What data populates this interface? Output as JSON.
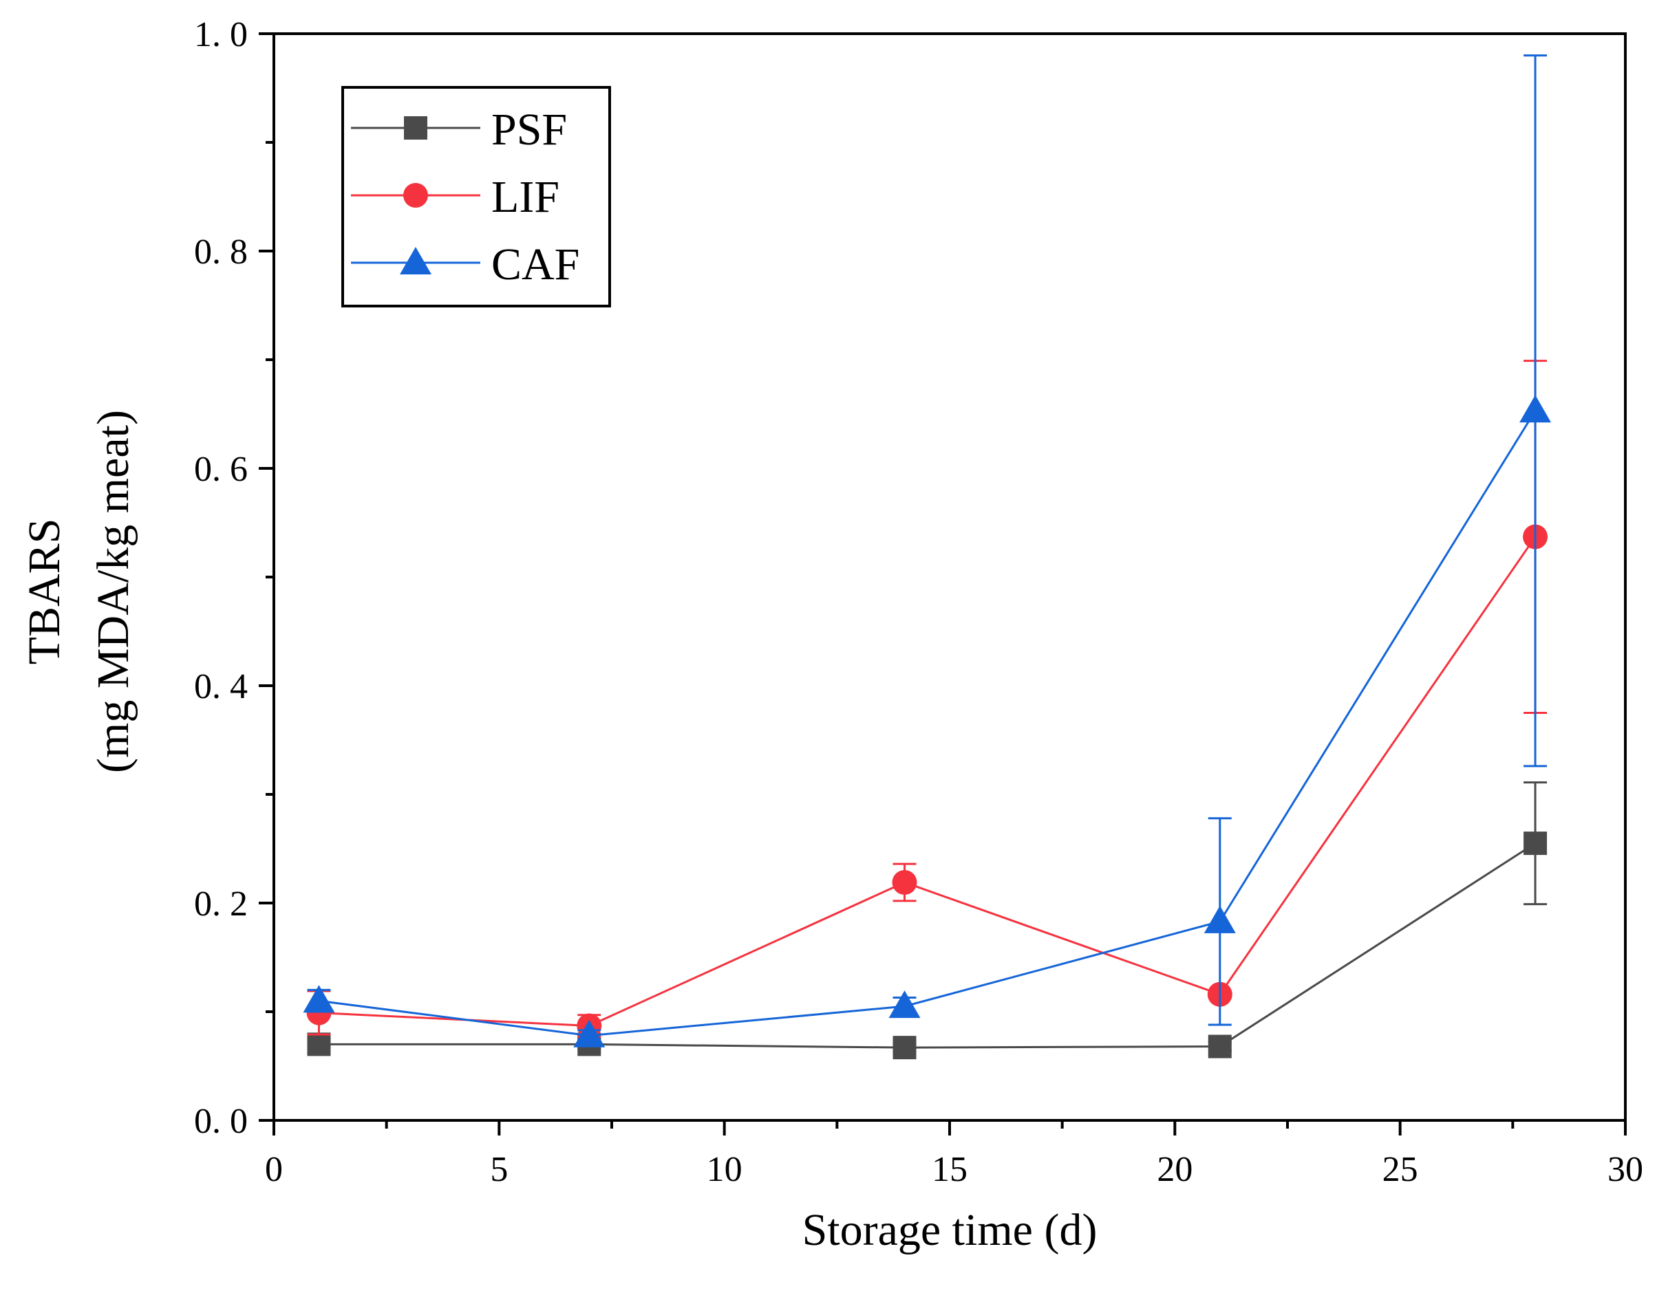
{
  "chart_data": {
    "type": "line",
    "xlabel": "Storage time (d)",
    "ylabel": [
      "TBARS",
      "(mg MDA/kg meat)"
    ],
    "xlim": [
      0,
      30
    ],
    "ylim": [
      0,
      1.0
    ],
    "x_ticks": [
      0,
      5,
      10,
      15,
      20,
      25,
      30
    ],
    "x_tick_labels": [
      "0",
      "5",
      "10",
      "15",
      "20",
      "25",
      "30"
    ],
    "y_ticks": [
      0,
      0.2,
      0.4,
      0.6,
      0.8,
      1.0
    ],
    "y_tick_labels": [
      "0. 0",
      "0. 2",
      "0. 4",
      "0. 6",
      "0. 8",
      "1. 0"
    ],
    "grid": false,
    "legend_position": "top-left",
    "x": [
      1,
      7,
      14,
      21,
      28
    ],
    "series": [
      {
        "name": "PSF",
        "color": "#4a4a4a",
        "marker": "square",
        "values": [
          0.07,
          0.07,
          0.067,
          0.068,
          0.255
        ],
        "error": [
          0.004,
          0.004,
          0.004,
          0.004,
          0.056
        ]
      },
      {
        "name": "LIF",
        "color": "#f5333f",
        "marker": "circle",
        "values": [
          0.099,
          0.087,
          0.219,
          0.116,
          0.537
        ],
        "error": [
          0.02,
          0.01,
          0.017,
          0.0,
          0.162
        ]
      },
      {
        "name": "CAF",
        "color": "#1565d8",
        "marker": "triangle",
        "values": [
          0.11,
          0.078,
          0.105,
          0.183,
          0.653
        ],
        "error": [
          0.01,
          0.005,
          0.008,
          0.095,
          0.327
        ]
      }
    ]
  }
}
